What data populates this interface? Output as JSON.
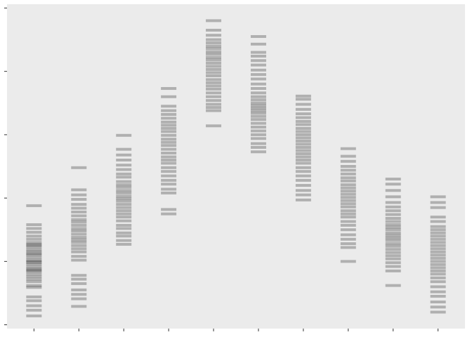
{
  "chart_data": {
    "type": "strip",
    "categories": [
      null,
      null,
      null,
      null,
      null,
      null,
      null,
      null,
      null,
      null
    ],
    "values": [
      [
        1.88,
        1.58,
        1.52,
        1.46,
        1.4,
        1.35,
        1.3,
        1.27,
        1.25,
        1.22,
        1.18,
        1.15,
        1.12,
        1.1,
        1.06,
        1.02,
        1.0,
        0.98,
        0.95,
        0.91,
        0.88,
        0.86,
        0.84,
        0.8,
        0.76,
        0.72,
        0.68,
        0.62,
        0.59,
        0.44,
        0.38,
        0.3,
        0.23,
        0.14
      ],
      [
        2.48,
        2.13,
        2.05,
        1.98,
        1.9,
        1.84,
        1.78,
        1.72,
        1.66,
        1.62,
        1.57,
        1.52,
        1.48,
        1.43,
        1.38,
        1.34,
        1.3,
        1.25,
        1.2,
        1.15,
        1.08,
        1.02,
        0.78,
        0.72,
        0.65,
        0.55,
        0.48,
        0.41,
        0.29
      ],
      [
        2.99,
        2.77,
        2.68,
        2.6,
        2.52,
        2.45,
        2.38,
        2.33,
        2.26,
        2.21,
        2.17,
        2.12,
        2.08,
        2.03,
        1.99,
        1.95,
        1.9,
        1.85,
        1.8,
        1.75,
        1.7,
        1.64,
        1.57,
        1.52,
        1.45,
        1.4,
        1.33,
        1.27
      ],
      [
        3.73,
        3.6,
        3.45,
        3.38,
        3.32,
        3.26,
        3.2,
        3.15,
        3.1,
        3.05,
        2.99,
        2.93,
        2.88,
        2.83,
        2.77,
        2.71,
        2.65,
        2.6,
        2.55,
        2.48,
        2.42,
        2.35,
        2.28,
        2.22,
        2.14,
        2.08,
        1.82,
        1.75
      ],
      [
        4.8,
        4.65,
        4.57,
        4.5,
        4.45,
        4.4,
        4.36,
        4.31,
        4.27,
        4.22,
        4.18,
        4.13,
        4.08,
        4.03,
        3.98,
        3.93,
        3.87,
        3.82,
        3.77,
        3.72,
        3.66,
        3.6,
        3.54,
        3.48,
        3.43,
        3.38,
        3.14
      ],
      [
        4.55,
        4.43,
        4.3,
        4.24,
        4.17,
        4.1,
        4.02,
        3.95,
        3.88,
        3.8,
        3.73,
        3.66,
        3.6,
        3.55,
        3.5,
        3.46,
        3.42,
        3.38,
        3.34,
        3.29,
        3.24,
        3.18,
        3.12,
        3.06,
        3.0,
        2.94,
        2.86,
        2.8,
        2.73
      ],
      [
        3.61,
        3.56,
        3.48,
        3.4,
        3.33,
        3.27,
        3.21,
        3.16,
        3.1,
        3.05,
        3.0,
        2.95,
        2.9,
        2.85,
        2.8,
        2.75,
        2.7,
        2.65,
        2.6,
        2.55,
        2.48,
        2.42,
        2.35,
        2.28,
        2.2,
        2.12,
        2.05,
        1.97
      ],
      [
        2.78,
        2.66,
        2.58,
        2.5,
        2.44,
        2.38,
        2.32,
        2.27,
        2.21,
        2.16,
        2.11,
        2.06,
        2.01,
        1.96,
        1.91,
        1.86,
        1.8,
        1.75,
        1.7,
        1.63,
        1.57,
        1.5,
        1.42,
        1.35,
        1.28,
        1.22,
        1.0
      ],
      [
        2.3,
        2.22,
        2.12,
        2.02,
        1.93,
        1.86,
        1.8,
        1.74,
        1.68,
        1.63,
        1.58,
        1.54,
        1.5,
        1.45,
        1.41,
        1.37,
        1.33,
        1.28,
        1.24,
        1.19,
        1.14,
        1.09,
        1.04,
        0.98,
        0.92,
        0.85,
        0.62
      ],
      [
        2.02,
        1.93,
        1.85,
        1.7,
        1.63,
        1.55,
        1.5,
        1.45,
        1.4,
        1.35,
        1.3,
        1.25,
        1.2,
        1.15,
        1.1,
        1.05,
        1.0,
        0.95,
        0.9,
        0.85,
        0.8,
        0.74,
        0.68,
        0.6,
        0.52,
        0.45,
        0.36,
        0.28,
        0.2
      ]
    ],
    "color": "#000000",
    "alpha": 0.25,
    "background": "#ebebeb",
    "ylim": [
      -0.06,
      5.06
    ],
    "yticks": [
      0,
      1,
      2,
      3,
      4,
      5
    ],
    "grid": false
  }
}
